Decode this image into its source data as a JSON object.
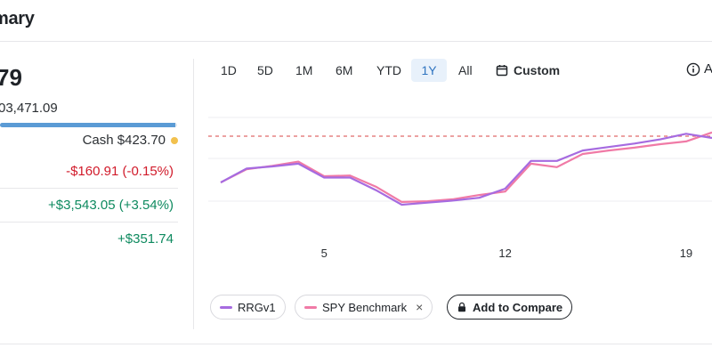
{
  "header": {
    "title": "mary"
  },
  "summary": {
    "value": "79",
    "sub_value": "03,471.09",
    "progress_fraction": 0.99,
    "cash_label": "Cash $423.70",
    "stat_1": "-$160.91 (-0.15%)",
    "stat_2": "+$3,543.05 (+3.54%)",
    "stat_3": "+$351.74"
  },
  "range_tabs": [
    "1D",
    "5D",
    "1M",
    "6M",
    "YTD",
    "1Y",
    "All"
  ],
  "active_range": "1Y",
  "custom_label": "Custom",
  "info_label": "A",
  "chart_data": {
    "type": "line",
    "x": [
      1,
      2,
      3,
      4,
      5,
      6,
      7,
      8,
      9,
      10,
      11,
      12,
      13,
      14,
      15,
      16,
      17,
      18,
      19,
      20
    ],
    "xticks": [
      "5",
      "12",
      "19"
    ],
    "reference_line": true,
    "series": [
      {
        "name": "RRGv1",
        "color": "#a66be0",
        "values": [
          -1.6,
          0.4,
          0.7,
          1.1,
          -0.9,
          -0.9,
          -2.7,
          -4.8,
          -4.5,
          -4.2,
          -3.8,
          -2.5,
          1.5,
          1.5,
          3.0,
          3.5,
          4.0,
          4.6,
          5.4,
          4.8
        ]
      },
      {
        "name": "SPY Benchmark",
        "color": "#f07aa6",
        "values": [
          -1.6,
          0.3,
          0.8,
          1.4,
          -0.7,
          -0.6,
          -2.2,
          -4.4,
          -4.3,
          -4.0,
          -3.4,
          -2.9,
          1.1,
          0.6,
          2.5,
          3.0,
          3.4,
          3.9,
          4.3,
          5.6
        ]
      }
    ],
    "ylim": [
      -8,
      8
    ],
    "grid": true
  },
  "legend": {
    "series_1": "RRGv1",
    "series_2": "SPY Benchmark",
    "remove_symbol": "×",
    "add_compare": "Add to Compare"
  }
}
